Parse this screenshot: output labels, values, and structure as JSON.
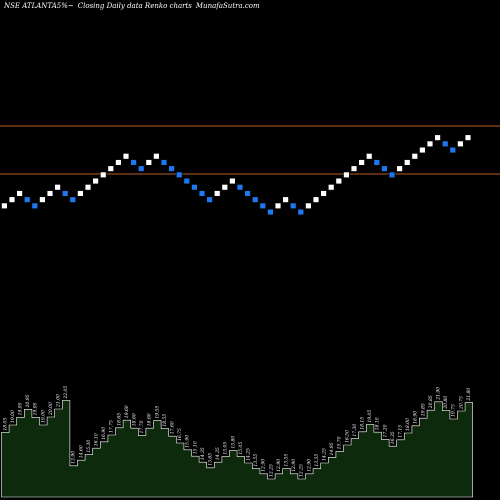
{
  "header": {
    "symbol": "NSE ATLANTA",
    "symbol_suffix": "5%~",
    "description": "Closing Daily data  Renko  charts",
    "site": "MunafaSutra.com"
  },
  "colors": {
    "background": "#000000",
    "up_brick": "#ffffff",
    "down_brick": "#1e78f0",
    "resistance_line": "#b85c28",
    "volume_fill": "#0d2a0d",
    "volume_stroke": "#ffffff",
    "text": "#ffffff"
  },
  "chart_data": {
    "type": "renko",
    "brick_size_label": "5%",
    "bricks": [
      {
        "dir": "up"
      },
      {
        "dir": "up"
      },
      {
        "dir": "up"
      },
      {
        "dir": "down"
      },
      {
        "dir": "down"
      },
      {
        "dir": "up"
      },
      {
        "dir": "up"
      },
      {
        "dir": "up"
      },
      {
        "dir": "down"
      },
      {
        "dir": "down"
      },
      {
        "dir": "up"
      },
      {
        "dir": "up"
      },
      {
        "dir": "up"
      },
      {
        "dir": "up"
      },
      {
        "dir": "up"
      },
      {
        "dir": "up"
      },
      {
        "dir": "up"
      },
      {
        "dir": "down"
      },
      {
        "dir": "down"
      },
      {
        "dir": "up"
      },
      {
        "dir": "up"
      },
      {
        "dir": "down"
      },
      {
        "dir": "down"
      },
      {
        "dir": "down"
      },
      {
        "dir": "down"
      },
      {
        "dir": "down"
      },
      {
        "dir": "down"
      },
      {
        "dir": "down"
      },
      {
        "dir": "up"
      },
      {
        "dir": "up"
      },
      {
        "dir": "up"
      },
      {
        "dir": "down"
      },
      {
        "dir": "down"
      },
      {
        "dir": "down"
      },
      {
        "dir": "down"
      },
      {
        "dir": "down"
      },
      {
        "dir": "up"
      },
      {
        "dir": "up"
      },
      {
        "dir": "down"
      },
      {
        "dir": "down"
      },
      {
        "dir": "up"
      },
      {
        "dir": "up"
      },
      {
        "dir": "up"
      },
      {
        "dir": "up"
      },
      {
        "dir": "up"
      },
      {
        "dir": "up"
      },
      {
        "dir": "up"
      },
      {
        "dir": "up"
      },
      {
        "dir": "up"
      },
      {
        "dir": "down"
      },
      {
        "dir": "down"
      },
      {
        "dir": "down"
      },
      {
        "dir": "up"
      },
      {
        "dir": "up"
      },
      {
        "dir": "up"
      },
      {
        "dir": "up"
      },
      {
        "dir": "up"
      },
      {
        "dir": "up"
      },
      {
        "dir": "down"
      },
      {
        "dir": "down"
      },
      {
        "dir": "up"
      },
      {
        "dir": "up"
      }
    ],
    "volume_labels": [
      "18.05",
      "19.00",
      "19.95",
      "20.95",
      "19.95",
      "19.00",
      "20.00",
      "21.00",
      "22.05",
      "13.90",
      "14.60",
      "15.30",
      "16.10",
      "16.90",
      "17.75",
      "18.65",
      "19.60",
      "18.60",
      "17.70",
      "18.60",
      "19.55",
      "18.55",
      "17.60",
      "16.75",
      "15.90",
      "15.10",
      "14.35",
      "13.65",
      "14.35",
      "15.05",
      "15.80",
      "15.05",
      "14.25",
      "13.55",
      "12.90",
      "12.25",
      "12.90",
      "13.55",
      "12.90",
      "12.25",
      "12.90",
      "13.55",
      "14.25",
      "14.95",
      "15.70",
      "16.50",
      "17.30",
      "18.15",
      "19.05",
      "18.10",
      "17.20",
      "16.35",
      "17.15",
      "18.00",
      "18.90",
      "19.85",
      "20.85",
      "21.90",
      "20.80",
      "19.75",
      "20.75",
      "21.80"
    ],
    "resistance_levels_count": 2
  }
}
